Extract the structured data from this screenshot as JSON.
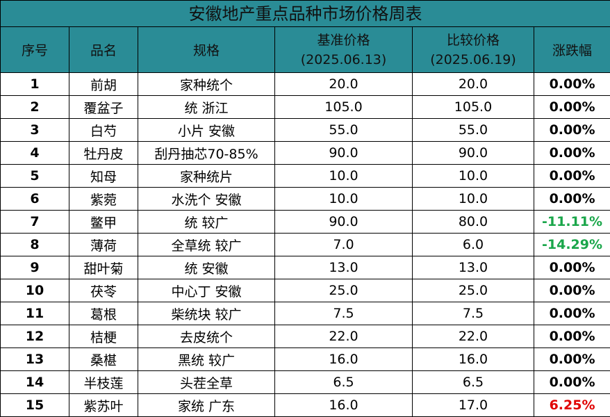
{
  "title": "安徽地产重点品种市场价格周表",
  "headers": {
    "index": "序号",
    "name": "品名",
    "spec": "规格",
    "base_price_line1": "基准价格",
    "base_price_line2": "(2025.06.13)",
    "compare_price_line1": "比较价格",
    "compare_price_line2": "(2025.06.19)",
    "change": "涨跌幅"
  },
  "rows": [
    {
      "index": "1",
      "name": "前胡",
      "spec": "家种统个",
      "base": "20.0",
      "compare": "20.0",
      "change": "0.00%",
      "trend": "flat"
    },
    {
      "index": "2",
      "name": "覆盆子",
      "spec": "统 浙江",
      "base": "105.0",
      "compare": "105.0",
      "change": "0.00%",
      "trend": "flat"
    },
    {
      "index": "3",
      "name": "白芍",
      "spec": "小片 安徽",
      "base": "55.0",
      "compare": "55.0",
      "change": "0.00%",
      "trend": "flat"
    },
    {
      "index": "4",
      "name": "牡丹皮",
      "spec": "刮丹抽芯70-85%",
      "base": "90.0",
      "compare": "90.0",
      "change": "0.00%",
      "trend": "flat"
    },
    {
      "index": "5",
      "name": "知母",
      "spec": "家种统片",
      "base": "10.0",
      "compare": "10.0",
      "change": "0.00%",
      "trend": "flat"
    },
    {
      "index": "6",
      "name": "紫菀",
      "spec": "水洗个 安徽",
      "base": "10.0",
      "compare": "10.0",
      "change": "0.00%",
      "trend": "flat"
    },
    {
      "index": "7",
      "name": "鳖甲",
      "spec": "统 较广",
      "base": "90.0",
      "compare": "80.0",
      "change": "-11.11%",
      "trend": "down"
    },
    {
      "index": "8",
      "name": "薄荷",
      "spec": "全草统 较广",
      "base": "7.0",
      "compare": "6.0",
      "change": "-14.29%",
      "trend": "down"
    },
    {
      "index": "9",
      "name": "甜叶菊",
      "spec": "统 安徽",
      "base": "13.0",
      "compare": "13.0",
      "change": "0.00%",
      "trend": "flat"
    },
    {
      "index": "10",
      "name": "茯苓",
      "spec": "中心丁 安徽",
      "base": "25.0",
      "compare": "25.0",
      "change": "0.00%",
      "trend": "flat"
    },
    {
      "index": "11",
      "name": "葛根",
      "spec": "柴统块 较广",
      "base": "7.5",
      "compare": "7.5",
      "change": "0.00%",
      "trend": "flat"
    },
    {
      "index": "12",
      "name": "桔梗",
      "spec": "去皮统个",
      "base": "22.0",
      "compare": "22.0",
      "change": "0.00%",
      "trend": "flat"
    },
    {
      "index": "13",
      "name": "桑椹",
      "spec": "黑统 较广",
      "base": "16.0",
      "compare": "16.0",
      "change": "0.00%",
      "trend": "flat"
    },
    {
      "index": "14",
      "name": "半枝莲",
      "spec": "头茬全草",
      "base": "6.5",
      "compare": "6.5",
      "change": "0.00%",
      "trend": "flat"
    },
    {
      "index": "15",
      "name": "紫苏叶",
      "spec": "家统 广东",
      "base": "16.0",
      "compare": "17.0",
      "change": "6.25%",
      "trend": "up"
    }
  ],
  "colors": {
    "header_bg": "#2a8c96",
    "up": "#e00000",
    "down": "#1aa64a",
    "flat": "#000000"
  }
}
